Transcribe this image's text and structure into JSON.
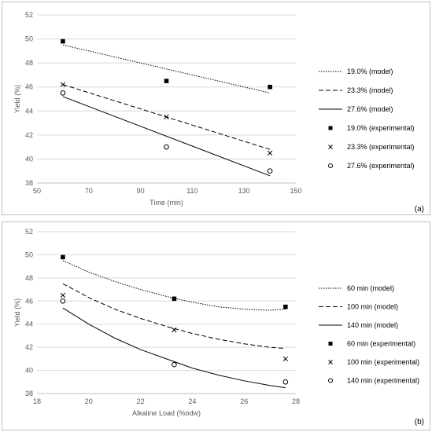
{
  "chart_data": [
    {
      "type": "line",
      "panel_label": "(a)",
      "xlabel": "Time (min)",
      "ylabel": "Yield (%)",
      "xlim": [
        50,
        150
      ],
      "ylim": [
        38,
        52
      ],
      "xticks": [
        50,
        70,
        90,
        110,
        130,
        150
      ],
      "yticks": [
        38,
        40,
        42,
        44,
        46,
        48,
        50,
        52
      ],
      "grid": "horizontal",
      "legend_position": "right",
      "series": [
        {
          "name": "19.0% (model)",
          "kind": "line",
          "style": "dotted",
          "x": [
            60,
            140
          ],
          "y": [
            49.5,
            45.5
          ]
        },
        {
          "name": "23.3% (model)",
          "kind": "line",
          "style": "dashed",
          "x": [
            60,
            140
          ],
          "y": [
            46.2,
            40.8
          ]
        },
        {
          "name": "27.6% (model)",
          "kind": "line",
          "style": "solid",
          "x": [
            60,
            140
          ],
          "y": [
            45.2,
            38.6
          ]
        },
        {
          "name": "19.0% (experimental)",
          "kind": "marker",
          "marker": "square",
          "x": [
            60,
            100,
            140
          ],
          "y": [
            49.8,
            46.5,
            46.0
          ]
        },
        {
          "name": "23.3% (experimental)",
          "kind": "marker",
          "marker": "cross",
          "x": [
            60,
            100,
            140
          ],
          "y": [
            46.2,
            43.5,
            40.5
          ]
        },
        {
          "name": "27.6% (experimental)",
          "kind": "marker",
          "marker": "circle",
          "x": [
            60,
            100,
            140
          ],
          "y": [
            45.5,
            41.0,
            39.0
          ]
        }
      ]
    },
    {
      "type": "line",
      "panel_label": "(b)",
      "xlabel": "Alkaline Load (%odw)",
      "ylabel": "Yield (%)",
      "xlim": [
        18,
        28
      ],
      "ylim": [
        38,
        52
      ],
      "xticks": [
        18,
        20,
        22,
        24,
        26,
        28
      ],
      "yticks": [
        38,
        40,
        42,
        44,
        46,
        48,
        50,
        52
      ],
      "grid": "horizontal",
      "legend_position": "right",
      "series": [
        {
          "name": "60 min (model)",
          "kind": "line",
          "style": "dotted",
          "x": [
            19,
            20,
            21,
            22,
            23,
            24,
            25,
            26,
            27,
            27.6
          ],
          "y": [
            49.5,
            48.5,
            47.7,
            47.0,
            46.4,
            45.9,
            45.5,
            45.3,
            45.2,
            45.3
          ]
        },
        {
          "name": "100 min (model)",
          "kind": "line",
          "style": "dashed",
          "x": [
            19,
            20,
            21,
            22,
            23,
            24,
            25,
            26,
            27,
            27.6
          ],
          "y": [
            47.5,
            46.3,
            45.3,
            44.5,
            43.8,
            43.2,
            42.7,
            42.3,
            42.0,
            41.9
          ]
        },
        {
          "name": "140 min (model)",
          "kind": "line",
          "style": "solid",
          "x": [
            19,
            20,
            21,
            22,
            23,
            24,
            25,
            26,
            27,
            27.6
          ],
          "y": [
            45.4,
            44.0,
            42.8,
            41.8,
            41.0,
            40.2,
            39.6,
            39.1,
            38.7,
            38.5
          ]
        },
        {
          "name": "60 min (experimental)",
          "kind": "marker",
          "marker": "square",
          "x": [
            19,
            23.3,
            27.6
          ],
          "y": [
            49.8,
            46.2,
            45.5
          ]
        },
        {
          "name": "100 min (experimental)",
          "kind": "marker",
          "marker": "cross",
          "x": [
            19,
            23.3,
            27.6
          ],
          "y": [
            46.5,
            43.5,
            41.0
          ]
        },
        {
          "name": "140 min (experimental)",
          "kind": "marker",
          "marker": "circle",
          "x": [
            19,
            23.3,
            27.6
          ],
          "y": [
            46.0,
            40.5,
            39.0
          ]
        }
      ]
    }
  ]
}
